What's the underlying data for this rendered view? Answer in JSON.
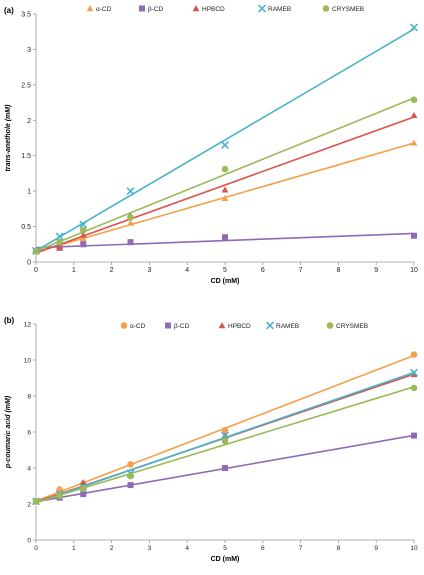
{
  "chart_data": [
    {
      "panel_label": "(a)",
      "type": "scatter",
      "title": "",
      "xlabel": "CD (mM)",
      "ylabel": "trans-anethole (mM)",
      "xlim": [
        0,
        10
      ],
      "ylim": [
        0,
        3.5
      ],
      "xticks": [
        "0",
        "1",
        "2",
        "3",
        "4",
        "5",
        "6",
        "7",
        "8",
        "9",
        "10"
      ],
      "yticks": [
        "0",
        "0.5",
        "1",
        "1.5",
        "2",
        "2.5",
        "3",
        "3.5"
      ],
      "grid": false,
      "legend_position": "top",
      "trendlines": true,
      "series": [
        {
          "name": "α-CD",
          "color": "#f5a04a",
          "marker": "triangle",
          "points": [
            [
              0,
              0.15
            ],
            [
              0.625,
              0.22
            ],
            [
              1.25,
              0.33
            ],
            [
              2.5,
              0.55
            ],
            [
              5,
              0.9
            ],
            [
              10,
              1.68
            ]
          ]
        },
        {
          "name": "β-CD",
          "color": "#8e6bb5",
          "marker": "square",
          "points": [
            [
              0,
              0.15
            ],
            [
              0.625,
              0.2
            ],
            [
              1.25,
              0.25
            ],
            [
              2.5,
              0.28
            ],
            [
              5,
              0.35
            ],
            [
              10,
              0.37
            ]
          ]
        },
        {
          "name": "HPBCD",
          "color": "#d9534f",
          "marker": "triangle",
          "points": [
            [
              0,
              0.16
            ],
            [
              0.625,
              0.2
            ],
            [
              1.25,
              0.38
            ],
            [
              2.5,
              0.65
            ],
            [
              5,
              1.02
            ],
            [
              10,
              2.07
            ]
          ]
        },
        {
          "name": "RAMEB",
          "color": "#4bb3c8",
          "marker": "x",
          "points": [
            [
              0,
              0.16
            ],
            [
              0.625,
              0.36
            ],
            [
              1.25,
              0.53
            ],
            [
              2.5,
              1.0
            ],
            [
              5,
              1.65
            ],
            [
              10,
              3.31
            ]
          ]
        },
        {
          "name": "CRYSMEB",
          "color": "#9bbb59",
          "marker": "circle",
          "points": [
            [
              0,
              0.15
            ],
            [
              0.625,
              0.28
            ],
            [
              1.25,
              0.45
            ],
            [
              2.5,
              0.63
            ],
            [
              5,
              1.31
            ],
            [
              10,
              2.29
            ]
          ]
        }
      ]
    },
    {
      "panel_label": "(b)",
      "type": "scatter",
      "title": "",
      "xlabel": "CD (mM)",
      "ylabel": "p-coumaric acid (mM)",
      "xlim": [
        0,
        10
      ],
      "ylim": [
        0,
        12
      ],
      "xticks": [
        "0",
        "1",
        "2",
        "3",
        "4",
        "5",
        "6",
        "7",
        "8",
        "9",
        "10"
      ],
      "yticks": [
        "0",
        "2",
        "4",
        "6",
        "8",
        "10",
        "12"
      ],
      "grid": false,
      "legend_position": "top",
      "trendlines": true,
      "series": [
        {
          "name": "α-CD",
          "color": "#f5a04a",
          "marker": "circle",
          "points": [
            [
              0,
              2.15
            ],
            [
              0.625,
              2.8
            ],
            [
              1.25,
              3.1
            ],
            [
              2.5,
              4.2
            ],
            [
              5,
              6.1
            ],
            [
              10,
              10.3
            ]
          ]
        },
        {
          "name": "β-CD",
          "color": "#8e6bb5",
          "marker": "square",
          "points": [
            [
              0,
              2.15
            ],
            [
              0.625,
              2.35
            ],
            [
              1.25,
              2.55
            ],
            [
              2.5,
              3.05
            ],
            [
              5,
              4.0
            ],
            [
              10,
              5.8
            ]
          ]
        },
        {
          "name": "HPBCD",
          "color": "#d9534f",
          "marker": "triangle",
          "points": [
            [
              0,
              2.15
            ],
            [
              0.625,
              2.5
            ],
            [
              1.25,
              3.2
            ],
            [
              2.5,
              3.6
            ],
            [
              5,
              5.8
            ],
            [
              10,
              9.2
            ]
          ]
        },
        {
          "name": "RAMEB",
          "color": "#4bb3c8",
          "marker": "x",
          "points": [
            [
              0,
              2.15
            ],
            [
              0.625,
              2.55
            ],
            [
              1.25,
              2.95
            ],
            [
              2.5,
              3.7
            ],
            [
              5,
              5.8
            ],
            [
              10,
              9.3
            ]
          ]
        },
        {
          "name": "CRYSMEB",
          "color": "#9bbb59",
          "marker": "circle",
          "points": [
            [
              0,
              2.15
            ],
            [
              0.625,
              2.45
            ],
            [
              1.25,
              2.85
            ],
            [
              2.5,
              3.55
            ],
            [
              5,
              5.5
            ],
            [
              10,
              8.45
            ]
          ]
        }
      ]
    }
  ]
}
